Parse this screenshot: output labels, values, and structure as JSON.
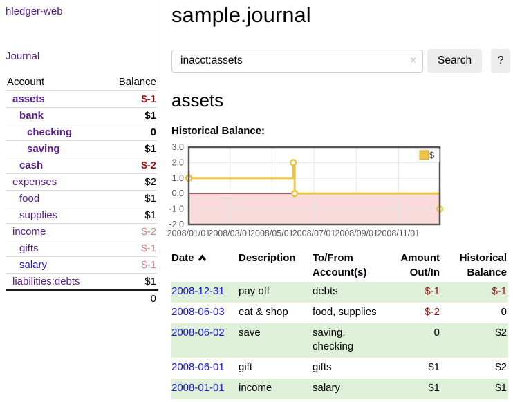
{
  "brand": "hledger-web",
  "nav": {
    "journal_label": "Journal"
  },
  "sidebar_table": {
    "headers": {
      "account": "Account",
      "balance": "Balance"
    },
    "rows": [
      {
        "name": "assets",
        "balance": "$-1"
      },
      {
        "name": "bank",
        "balance": "$1"
      },
      {
        "name": "checking",
        "balance": "0"
      },
      {
        "name": "saving",
        "balance": "$1"
      },
      {
        "name": "cash",
        "balance": "$-2"
      },
      {
        "name": "expenses",
        "balance": "$2"
      },
      {
        "name": "food",
        "balance": "$1"
      },
      {
        "name": "supplies",
        "balance": "$1"
      },
      {
        "name": "income",
        "balance": "$-2"
      },
      {
        "name": "gifts",
        "balance": "$-1"
      },
      {
        "name": "salary",
        "balance": "$-1"
      },
      {
        "name": "liabilities:debts",
        "balance": "$1"
      }
    ],
    "total": "0"
  },
  "header": {
    "title": "sample.journal"
  },
  "search": {
    "value": "inacct:assets",
    "clear_icon": "×",
    "button_label": "Search",
    "help_label": "?"
  },
  "account_page": {
    "heading": "assets",
    "chart_label": "Historical Balance:"
  },
  "chart_data": {
    "type": "line",
    "step": true,
    "title": "Historical Balance:",
    "series": [
      {
        "name": "$",
        "color": "#edc240",
        "points": [
          [
            "2008-01-01",
            1
          ],
          [
            "2008-06-01",
            2
          ],
          [
            "2008-06-03",
            0
          ],
          [
            "2008-12-31",
            -1
          ]
        ]
      }
    ],
    "xlim": [
      "2008-01-01",
      "2008-12-31"
    ],
    "ylim": [
      -2,
      3
    ],
    "yticks": [
      3.0,
      2.0,
      1.0,
      0.0,
      -1.0,
      -2.0
    ],
    "xticks": [
      "2008/01/01",
      "2008/03/01",
      "2008/05/01",
      "2008/07/01",
      "2008/09/01",
      "2008/11/01"
    ],
    "legend_position": "top-right",
    "grid": true,
    "negative_shade": true,
    "colors": {
      "shade": "#fadbdb",
      "zero_line": "#8f2929",
      "grid": "#e3e3e3",
      "border": "#545454"
    }
  },
  "register_table": {
    "headers": {
      "date": "Date",
      "description": "Description",
      "accounts": "To/From Account(s)",
      "amount": "Amount Out/In",
      "balance": "Historical Balance"
    },
    "rows": [
      {
        "date": "2008-12-31",
        "description": "pay off",
        "accounts": "debts",
        "amount": "$-1",
        "balance": "$-1"
      },
      {
        "date": "2008-06-03",
        "description": "eat & shop",
        "accounts": "food, supplies",
        "amount": "$-2",
        "balance": "0"
      },
      {
        "date": "2008-06-02",
        "description": "save",
        "accounts": "saving, checking",
        "amount": "0",
        "balance": "$2"
      },
      {
        "date": "2008-06-01",
        "description": "gift",
        "accounts": "gifts",
        "amount": "$1",
        "balance": "$2"
      },
      {
        "date": "2008-01-01",
        "description": "income",
        "accounts": "salary",
        "amount": "$1",
        "balance": "$1"
      }
    ]
  },
  "colors": {
    "link_purple": "#551a8b",
    "link_blue": "#1414dd",
    "negative_strong": "#941616",
    "negative_soft": "#c08080",
    "row_highlight": "#dff0d8",
    "series_yellow": "#edc240"
  }
}
